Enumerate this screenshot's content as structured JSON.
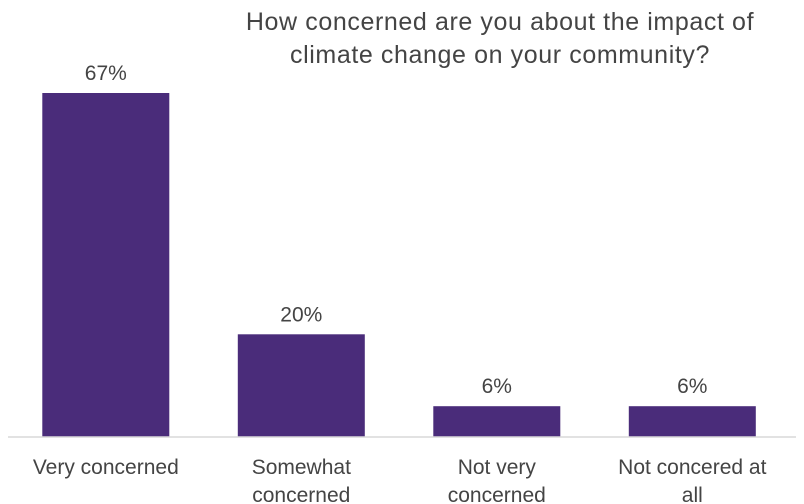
{
  "chart_data": {
    "type": "bar",
    "title_lines": [
      "How concerned are you about the impact of",
      "climate change on your community?"
    ],
    "categories": [
      "Very concerned",
      "Somewhat concerned",
      "Not very concerned",
      "Not concered at all"
    ],
    "category_label_lines": [
      [
        "Very concerned"
      ],
      [
        "Somewhat",
        "concerned"
      ],
      [
        "Not very",
        "concerned"
      ],
      [
        "Not concered at",
        "all"
      ]
    ],
    "values": [
      67,
      20,
      6,
      6
    ],
    "value_labels": [
      "67%",
      "20%",
      "6%",
      "6%"
    ],
    "unit": "%",
    "ylim": [
      0,
      67
    ],
    "grid": false,
    "legend": "none",
    "colors": {
      "bar": "#4a2c7a",
      "text": "#444444",
      "axis": "#d9d9d9"
    }
  }
}
